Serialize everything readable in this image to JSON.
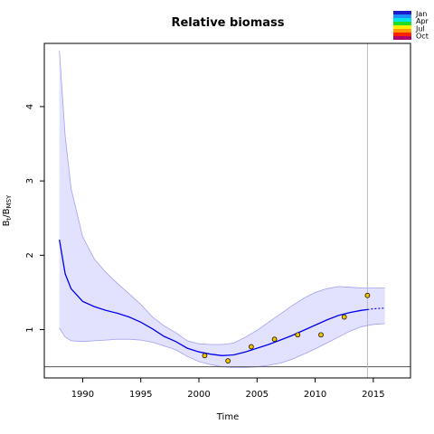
{
  "chart_data": {
    "type": "line",
    "title": "Relative biomass",
    "xlabel": "Time",
    "ylabel": {
      "base": "B",
      "sub1": "t",
      "sep": "/B",
      "sub2": "MSY"
    },
    "xlim": [
      1986.7,
      2018.2
    ],
    "ylim": [
      0.35,
      4.85
    ],
    "xticks": [
      1990,
      1995,
      2000,
      2005,
      2010,
      2015
    ],
    "yticks": [
      1,
      2,
      3,
      4
    ],
    "grid": false,
    "legend_position": "top-right",
    "legend": [
      "Jan",
      "Apr",
      "Jul",
      "Oct"
    ],
    "legend_colors": [
      "#1a1acc",
      "#1f8fff",
      "#00e5e5",
      "#22dd22",
      "#ffee00",
      "#ff9900",
      "#ff2200",
      "#b0006e"
    ],
    "colors": {
      "estimate": "#0000ee",
      "ci_fill": "#e2e2ff",
      "ci_line": "#a0a0f0",
      "points": "#f2c200",
      "reference": "#555555",
      "vline": "#bbbbbb"
    },
    "vertical_line_x": 2014.5,
    "reference_line_y": 0.5,
    "series": [
      {
        "role": "estimate",
        "x": [
          1988,
          1988.5,
          1989,
          1990,
          1991,
          1992,
          1993,
          1994,
          1995,
          1996,
          1997,
          1998,
          1999,
          2000,
          2001,
          2002,
          2003,
          2004,
          2005,
          2006,
          2007,
          2008,
          2009,
          2010,
          2011,
          2012,
          2013,
          2014,
          2014.5
        ],
        "y": [
          2.21,
          1.75,
          1.55,
          1.38,
          1.31,
          1.26,
          1.22,
          1.17,
          1.1,
          1.01,
          0.91,
          0.84,
          0.75,
          0.7,
          0.67,
          0.65,
          0.66,
          0.7,
          0.75,
          0.8,
          0.86,
          0.92,
          0.99,
          1.06,
          1.13,
          1.19,
          1.23,
          1.26,
          1.27
        ]
      },
      {
        "role": "prediction",
        "x": [
          2014.5,
          2015,
          2016
        ],
        "y": [
          1.27,
          1.28,
          1.29
        ]
      },
      {
        "role": "ci_upper",
        "x": [
          1988,
          1988.5,
          1989,
          1990,
          1991,
          1992,
          1993,
          1994,
          1995,
          1996,
          1997,
          1998,
          1999,
          2000,
          2001,
          2002,
          2003,
          2004,
          2005,
          2006,
          2007,
          2008,
          2009,
          2010,
          2011,
          2012,
          2013,
          2014,
          2015,
          2016
        ],
        "y": [
          4.75,
          3.6,
          2.9,
          2.25,
          1.95,
          1.77,
          1.62,
          1.48,
          1.34,
          1.17,
          1.05,
          0.96,
          0.85,
          0.81,
          0.8,
          0.8,
          0.82,
          0.9,
          0.99,
          1.1,
          1.21,
          1.32,
          1.42,
          1.5,
          1.55,
          1.58,
          1.57,
          1.56,
          1.56,
          1.56
        ]
      },
      {
        "role": "ci_lower",
        "x": [
          1988,
          1988.5,
          1989,
          1990,
          1991,
          1992,
          1993,
          1994,
          1995,
          1996,
          1997,
          1998,
          1999,
          2000,
          2001,
          2002,
          2003,
          2004,
          2005,
          2006,
          2007,
          2008,
          2009,
          2010,
          2011,
          2012,
          2013,
          2014,
          2015,
          2016
        ],
        "y": [
          1.02,
          0.9,
          0.85,
          0.84,
          0.85,
          0.86,
          0.87,
          0.87,
          0.86,
          0.83,
          0.78,
          0.73,
          0.64,
          0.57,
          0.53,
          0.5,
          0.49,
          0.49,
          0.5,
          0.52,
          0.55,
          0.6,
          0.67,
          0.74,
          0.82,
          0.9,
          0.98,
          1.04,
          1.07,
          1.08
        ]
      },
      {
        "role": "observations",
        "x": [
          2000.5,
          2002.5,
          2004.5,
          2006.5,
          2008.5,
          2010.5,
          2012.5,
          2014.5
        ],
        "y": [
          0.65,
          0.58,
          0.77,
          0.87,
          0.93,
          0.93,
          1.17,
          1.46
        ]
      }
    ]
  }
}
